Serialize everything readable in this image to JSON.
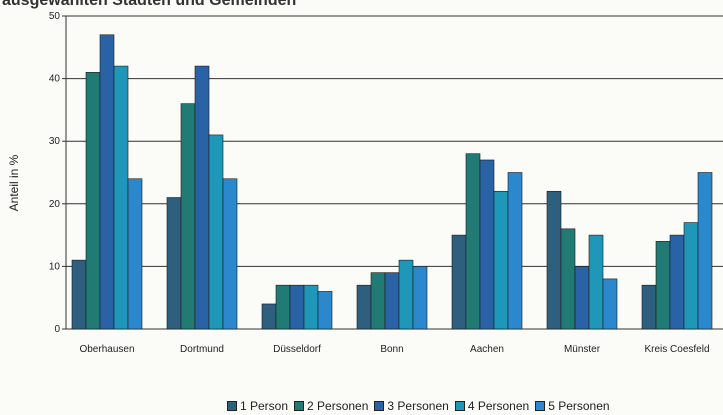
{
  "title": "ausgewählten Städten und Gemeinden",
  "chart_data": {
    "type": "bar",
    "ylabel": "Anteil in %",
    "xlabel": "",
    "ylim": [
      0,
      50
    ],
    "yticks": [
      0,
      10,
      20,
      30,
      40,
      50
    ],
    "grid": true,
    "legend_position": "bottom",
    "categories": [
      "Oberhausen",
      "Dortmund",
      "Düsseldorf",
      "Bonn",
      "Aachen",
      "Münster",
      "Kreis Coesfeld"
    ],
    "series": [
      {
        "name": "1 Person",
        "color": "#2f5f7f",
        "values": [
          11,
          21,
          4,
          7,
          15,
          22,
          7
        ]
      },
      {
        "name": "2 Personen",
        "color": "#217a73",
        "values": [
          41,
          36,
          7,
          9,
          28,
          16,
          14
        ]
      },
      {
        "name": "3 Personen",
        "color": "#2a62a6",
        "values": [
          47,
          42,
          7,
          9,
          27,
          10,
          15
        ]
      },
      {
        "name": "4 Personen",
        "color": "#1f97b9",
        "values": [
          42,
          31,
          7,
          11,
          22,
          15,
          17
        ]
      },
      {
        "name": "5 Personen",
        "color": "#2b88cd",
        "values": [
          24,
          24,
          6,
          10,
          25,
          8,
          25
        ]
      }
    ]
  }
}
